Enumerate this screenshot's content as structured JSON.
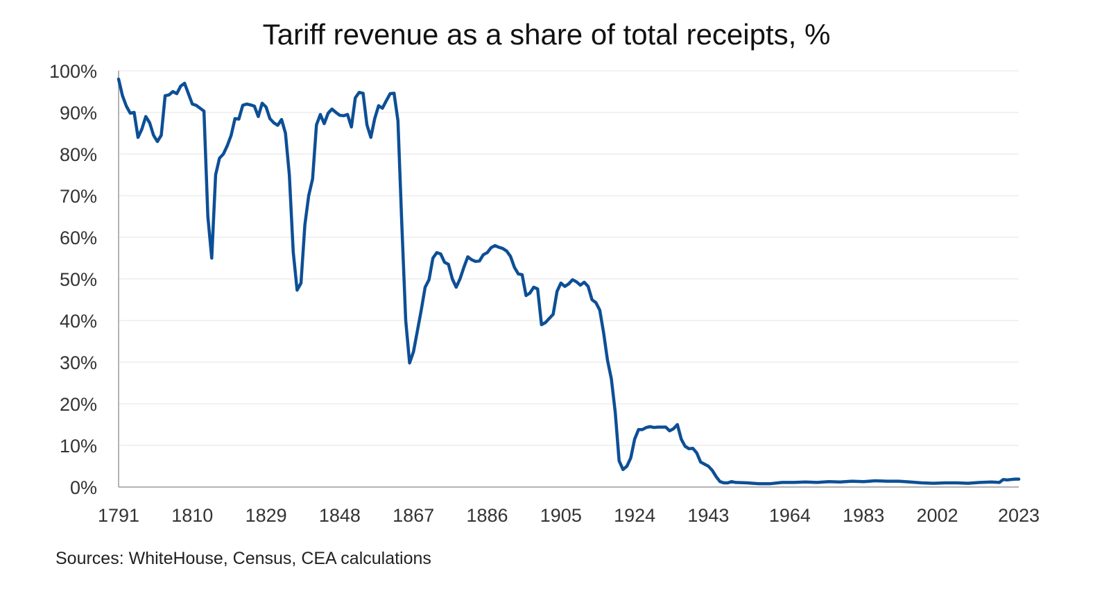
{
  "chart_data": {
    "type": "line",
    "title": "Tariff revenue as a share of total receipts, %",
    "xlabel": "",
    "ylabel": "",
    "xlim": [
      1791,
      2023
    ],
    "ylim": [
      0,
      100
    ],
    "x_ticks": [
      1791,
      1810,
      1829,
      1848,
      1867,
      1886,
      1905,
      1924,
      1943,
      1964,
      1983,
      2002,
      2023
    ],
    "x_tick_labels": [
      "1791",
      "1810",
      "1829",
      "1848",
      "1867",
      "1886",
      "1905",
      "1924",
      "1943",
      "1964",
      "1983",
      "2002",
      "2023"
    ],
    "y_ticks": [
      0,
      10,
      20,
      30,
      40,
      50,
      60,
      70,
      80,
      90,
      100
    ],
    "y_tick_labels": [
      "0%",
      "10%",
      "20%",
      "30%",
      "40%",
      "50%",
      "60%",
      "70%",
      "80%",
      "90%",
      "100%"
    ],
    "grid": "horizontal",
    "series_color": "#0d4f96",
    "series": [
      {
        "points": [
          [
            1791,
            98
          ],
          [
            1792,
            94
          ],
          [
            1793,
            91.5
          ],
          [
            1794,
            89.8
          ],
          [
            1795,
            90
          ],
          [
            1796,
            84
          ],
          [
            1797,
            86
          ],
          [
            1798,
            89
          ],
          [
            1799,
            87.5
          ],
          [
            1800,
            84.5
          ],
          [
            1801,
            83
          ],
          [
            1802,
            84.5
          ],
          [
            1803,
            94
          ],
          [
            1804,
            94.2
          ],
          [
            1805,
            95
          ],
          [
            1806,
            94.5
          ],
          [
            1807,
            96.3
          ],
          [
            1808,
            97
          ],
          [
            1809,
            94.5
          ],
          [
            1810,
            92
          ],
          [
            1811,
            91.7
          ],
          [
            1812,
            91
          ],
          [
            1813,
            90.3
          ],
          [
            1814,
            65
          ],
          [
            1815,
            55
          ],
          [
            1816,
            75
          ],
          [
            1817,
            79
          ],
          [
            1818,
            80
          ],
          [
            1819,
            82
          ],
          [
            1820,
            84.5
          ],
          [
            1821,
            88.5
          ],
          [
            1822,
            88.4
          ],
          [
            1823,
            91.7
          ],
          [
            1824,
            92
          ],
          [
            1825,
            91.8
          ],
          [
            1826,
            91.5
          ],
          [
            1827,
            89
          ],
          [
            1828,
            92.2
          ],
          [
            1829,
            91.3
          ],
          [
            1830,
            88.5
          ],
          [
            1831,
            87.5
          ],
          [
            1832,
            86.9
          ],
          [
            1833,
            88.3
          ],
          [
            1834,
            85
          ],
          [
            1835,
            75
          ],
          [
            1836,
            56.5
          ],
          [
            1837,
            47.3
          ],
          [
            1838,
            49
          ],
          [
            1839,
            63
          ],
          [
            1840,
            70
          ],
          [
            1841,
            74
          ],
          [
            1842,
            87
          ],
          [
            1843,
            89.5
          ],
          [
            1844,
            87.3
          ],
          [
            1845,
            89.8
          ],
          [
            1846,
            90.8
          ],
          [
            1847,
            90
          ],
          [
            1848,
            89.3
          ],
          [
            1849,
            89.2
          ],
          [
            1850,
            89.5
          ],
          [
            1851,
            86.5
          ],
          [
            1852,
            93.5
          ],
          [
            1853,
            94.8
          ],
          [
            1854,
            94.6
          ],
          [
            1855,
            87
          ],
          [
            1856,
            84
          ],
          [
            1857,
            88.5
          ],
          [
            1858,
            91.6
          ],
          [
            1859,
            91
          ],
          [
            1860,
            92.8
          ],
          [
            1861,
            94.5
          ],
          [
            1862,
            94.6
          ],
          [
            1863,
            88
          ],
          [
            1864,
            63
          ],
          [
            1865,
            40
          ],
          [
            1866,
            29.8
          ],
          [
            1867,
            32.5
          ],
          [
            1868,
            37.5
          ],
          [
            1869,
            42.5
          ],
          [
            1870,
            48
          ],
          [
            1871,
            49.8
          ],
          [
            1872,
            55
          ],
          [
            1873,
            56.3
          ],
          [
            1874,
            56
          ],
          [
            1875,
            54
          ],
          [
            1876,
            53.5
          ],
          [
            1877,
            50
          ],
          [
            1878,
            48
          ],
          [
            1879,
            50
          ],
          [
            1880,
            52.8
          ],
          [
            1881,
            55.3
          ],
          [
            1882,
            54.6
          ],
          [
            1883,
            54.2
          ],
          [
            1884,
            54.3
          ],
          [
            1885,
            55.8
          ],
          [
            1886,
            56.3
          ],
          [
            1887,
            57.5
          ],
          [
            1888,
            58
          ],
          [
            1889,
            57.6
          ],
          [
            1890,
            57.3
          ],
          [
            1891,
            56.7
          ],
          [
            1892,
            55.4
          ],
          [
            1893,
            52.8
          ],
          [
            1894,
            51.2
          ],
          [
            1895,
            51
          ],
          [
            1896,
            46
          ],
          [
            1897,
            46.6
          ],
          [
            1898,
            48
          ],
          [
            1899,
            47.6
          ],
          [
            1900,
            39
          ],
          [
            1901,
            39.5
          ],
          [
            1902,
            40.5
          ],
          [
            1903,
            41.5
          ],
          [
            1904,
            47
          ],
          [
            1905,
            49
          ],
          [
            1906,
            48.2
          ],
          [
            1907,
            48.8
          ],
          [
            1908,
            49.8
          ],
          [
            1909,
            49.3
          ],
          [
            1910,
            48.5
          ],
          [
            1911,
            49.2
          ],
          [
            1912,
            48.2
          ],
          [
            1913,
            45
          ],
          [
            1914,
            44.3
          ],
          [
            1915,
            42.5
          ],
          [
            1916,
            37
          ],
          [
            1917,
            30.5
          ],
          [
            1918,
            26
          ],
          [
            1919,
            18
          ],
          [
            1920,
            6.3
          ],
          [
            1921,
            4.2
          ],
          [
            1922,
            5
          ],
          [
            1923,
            7
          ],
          [
            1924,
            11.5
          ],
          [
            1925,
            13.8
          ],
          [
            1926,
            13.8
          ],
          [
            1927,
            14.3
          ],
          [
            1928,
            14.5
          ],
          [
            1929,
            14.3
          ],
          [
            1930,
            14.4
          ],
          [
            1931,
            14.4
          ],
          [
            1932,
            14.4
          ],
          [
            1933,
            13.5
          ],
          [
            1934,
            14
          ],
          [
            1935,
            15
          ],
          [
            1936,
            11.5
          ],
          [
            1937,
            9.8
          ],
          [
            1938,
            9.2
          ],
          [
            1939,
            9.3
          ],
          [
            1940,
            8.2
          ],
          [
            1941,
            6
          ],
          [
            1942,
            5.5
          ],
          [
            1943,
            5
          ],
          [
            1944,
            4
          ],
          [
            1945,
            2.5
          ],
          [
            1946,
            1.3
          ],
          [
            1947,
            1
          ],
          [
            1948,
            1
          ],
          [
            1949,
            1.3
          ],
          [
            1950,
            1.1
          ],
          [
            1953,
            1
          ],
          [
            1956,
            0.8
          ],
          [
            1959,
            0.8
          ],
          [
            1962,
            1.1
          ],
          [
            1965,
            1.1
          ],
          [
            1968,
            1.2
          ],
          [
            1971,
            1.1
          ],
          [
            1974,
            1.3
          ],
          [
            1977,
            1.2
          ],
          [
            1980,
            1.4
          ],
          [
            1983,
            1.3
          ],
          [
            1986,
            1.5
          ],
          [
            1989,
            1.4
          ],
          [
            1992,
            1.4
          ],
          [
            1995,
            1.2
          ],
          [
            1998,
            1
          ],
          [
            2001,
            0.9
          ],
          [
            2004,
            1
          ],
          [
            2007,
            1
          ],
          [
            2010,
            0.9
          ],
          [
            2013,
            1.1
          ],
          [
            2016,
            1.2
          ],
          [
            2018,
            1.1
          ],
          [
            2019,
            1.8
          ],
          [
            2020,
            1.7
          ],
          [
            2021,
            1.8
          ],
          [
            2022,
            1.9
          ],
          [
            2023,
            1.9
          ]
        ]
      }
    ],
    "source": "Sources: WhiteHouse, Census, CEA calculations"
  }
}
